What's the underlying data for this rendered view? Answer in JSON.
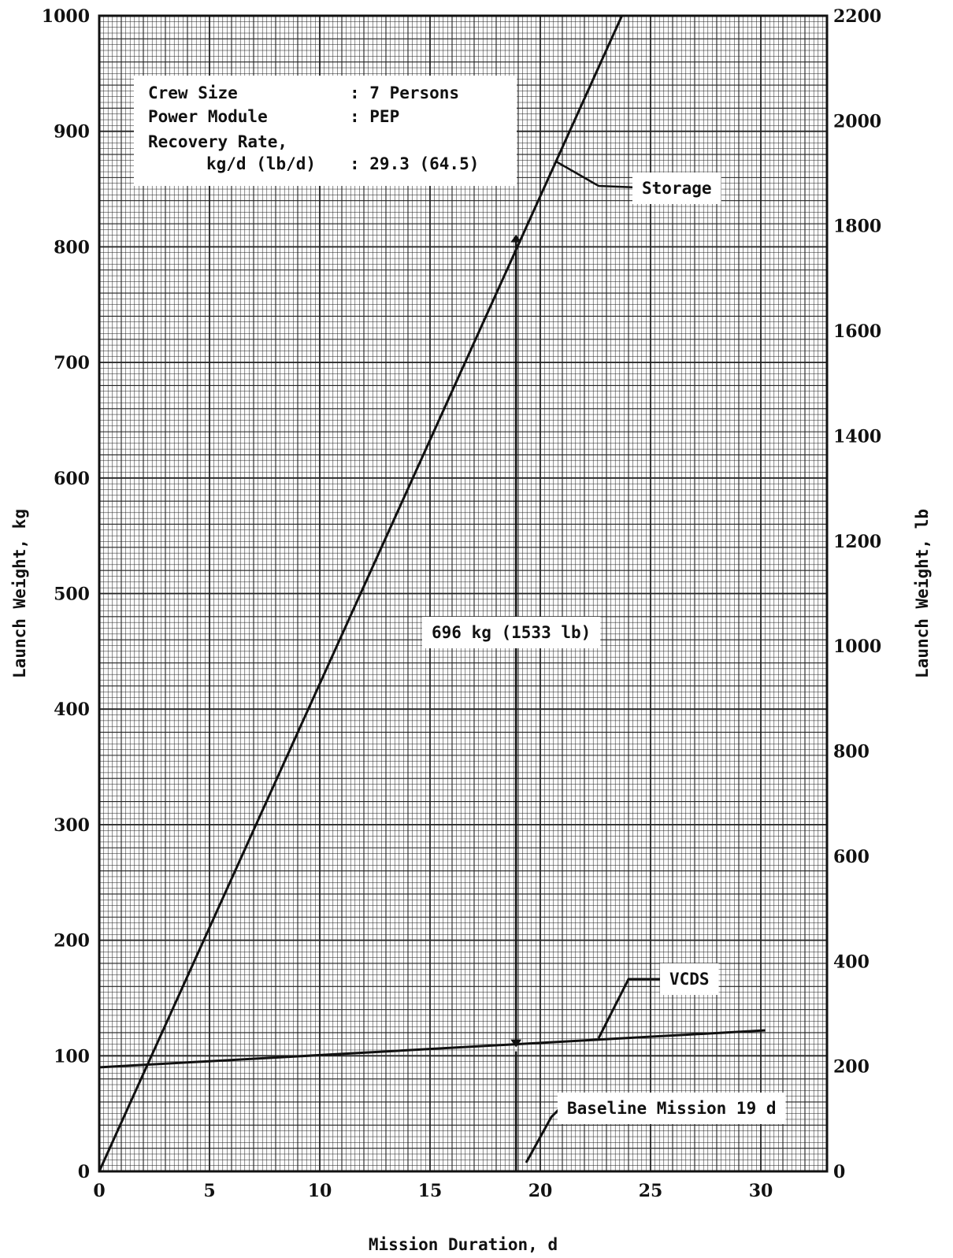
{
  "chart_data": {
    "type": "line",
    "xlabel": "Mission Duration, d",
    "ylabel": "Launch Weight, kg",
    "y2label": "Launch Weight, lb",
    "xlim": [
      0,
      33
    ],
    "ylim": [
      0,
      1000
    ],
    "y2lim": [
      0,
      2200
    ],
    "x_ticks": [
      "0",
      "5",
      "10",
      "15",
      "20",
      "25",
      "30"
    ],
    "y_ticks": [
      "0",
      "100",
      "200",
      "300",
      "400",
      "500",
      "600",
      "700",
      "800",
      "900",
      "1000"
    ],
    "y2_ticks": [
      "0",
      "200",
      "400",
      "600",
      "800",
      "1000",
      "1200",
      "1400",
      "1600",
      "1800",
      "2000",
      "2200"
    ],
    "grid": true,
    "series": [
      {
        "name": "Storage",
        "x": [
          0,
          23.7
        ],
        "y": [
          0,
          1000
        ]
      },
      {
        "name": "VCDS",
        "x": [
          0,
          30.2
        ],
        "y": [
          90,
          122
        ]
      }
    ],
    "info_box": {
      "lines": [
        {
          "label": "Crew Size",
          "value": ": 7 Persons"
        },
        {
          "label": "Power Module",
          "value": ": PEP"
        },
        {
          "label": "Recovery Rate,",
          "value": ""
        },
        {
          "label": "kg/d (lb/d)",
          "value": ": 29.3 (64.5)"
        }
      ]
    },
    "annotations": {
      "difference": {
        "text": "696 kg (1533 lb)",
        "x": 18.9,
        "y_top": 810,
        "y_bottom": 108
      },
      "storage_label": "Storage",
      "vcds_label": "VCDS",
      "baseline": {
        "text": "Baseline Mission 19 d",
        "x": 19
      }
    }
  }
}
